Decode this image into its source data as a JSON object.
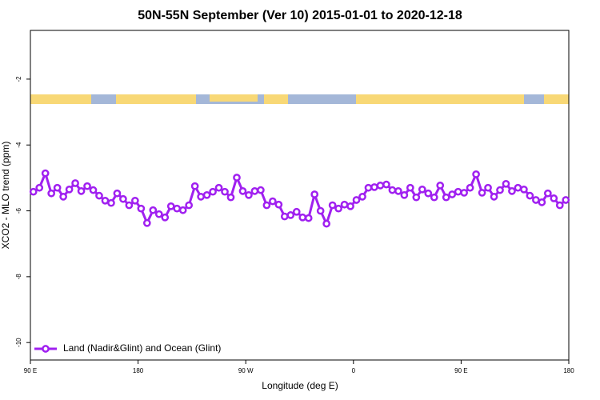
{
  "chart_data": {
    "type": "line",
    "title": "50N-55N September (Ver 10)   2015-01-01 to 2020-12-18",
    "x_label": "Longitude (deg E)",
    "y_label": "XCO2 - MLO trend (ppm)",
    "xlim": [
      90,
      540
    ],
    "ylim": [
      -10.53,
      -0.52
    ],
    "xticks": [
      {
        "value": 90,
        "label": "90 E"
      },
      {
        "value": 180,
        "label": "180"
      },
      {
        "value": 270,
        "label": "90 W"
      },
      {
        "value": 360,
        "label": "0"
      },
      {
        "value": 450,
        "label": "90 E"
      },
      {
        "value": 540,
        "label": "180"
      }
    ],
    "yticks": [
      -2,
      -4,
      -6,
      -8,
      -10
    ],
    "legend": "lower left",
    "x": [
      92.5,
      97.5,
      102.5,
      107.5,
      112.5,
      117.5,
      122.5,
      127.5,
      132.5,
      137.5,
      142.5,
      147.5,
      152.5,
      157.5,
      162.5,
      167.5,
      172.5,
      177.5,
      182.5,
      187.5,
      192.5,
      197.5,
      202.5,
      207.5,
      212.5,
      217.5,
      222.5,
      227.5,
      232.5,
      237.5,
      242.5,
      247.5,
      252.5,
      257.5,
      262.5,
      267.5,
      272.5,
      277.5,
      282.5,
      287.5,
      292.5,
      297.5,
      302.5,
      307.5,
      312.5,
      317.5,
      322.5,
      327.5,
      332.5,
      337.5,
      342.5,
      347.5,
      352.5,
      357.5,
      362.5,
      367.5,
      372.5,
      377.5,
      382.5,
      387.5,
      392.5,
      397.5,
      402.5,
      407.5,
      412.5,
      417.5,
      422.5,
      427.5,
      432.5,
      437.5,
      442.5,
      447.5,
      452.5,
      457.5,
      462.5,
      467.5,
      472.5,
      477.5,
      482.5,
      487.5,
      492.5,
      497.5,
      502.5,
      507.5,
      512.5,
      517.5,
      522.5,
      527.5,
      532.5,
      537.5
    ],
    "series": [
      {
        "name": "Land (Nadir&Glint) and Ocean (Glint)",
        "color": "#a020f0",
        "values": [
          -5.42,
          -5.3,
          -4.86,
          -5.47,
          -5.3,
          -5.57,
          -5.35,
          -5.16,
          -5.4,
          -5.25,
          -5.37,
          -5.54,
          -5.69,
          -5.76,
          -5.47,
          -5.64,
          -5.83,
          -5.69,
          -5.93,
          -6.37,
          -5.98,
          -6.1,
          -6.2,
          -5.86,
          -5.93,
          -5.98,
          -5.83,
          -5.25,
          -5.57,
          -5.52,
          -5.42,
          -5.3,
          -5.42,
          -5.59,
          -4.99,
          -5.4,
          -5.52,
          -5.4,
          -5.37,
          -5.83,
          -5.71,
          -5.81,
          -6.17,
          -6.13,
          -6.03,
          -6.2,
          -6.22,
          -5.5,
          -6.0,
          -6.39,
          -5.83,
          -5.93,
          -5.81,
          -5.86,
          -5.67,
          -5.57,
          -5.3,
          -5.28,
          -5.23,
          -5.2,
          -5.37,
          -5.4,
          -5.52,
          -5.3,
          -5.59,
          -5.35,
          -5.47,
          -5.59,
          -5.23,
          -5.59,
          -5.5,
          -5.42,
          -5.45,
          -5.3,
          -4.89,
          -5.45,
          -5.3,
          -5.57,
          -5.37,
          -5.18,
          -5.4,
          -5.3,
          -5.35,
          -5.54,
          -5.67,
          -5.74,
          -5.47,
          -5.62,
          -5.83,
          -5.67
        ]
      }
    ]
  }
}
